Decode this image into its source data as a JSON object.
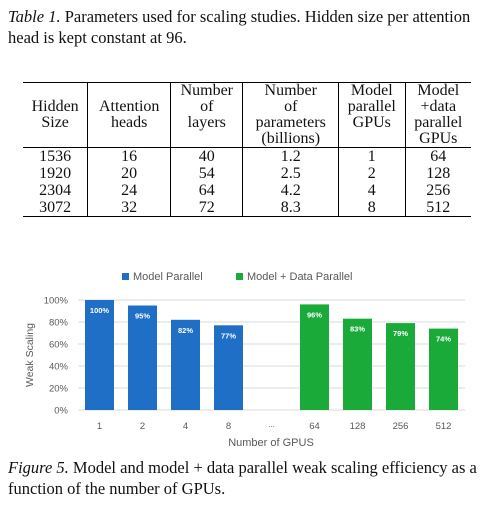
{
  "table_caption": {
    "label": "Table 1.",
    "text": " Parameters used for scaling studies. Hidden size per attention head is kept constant at 96."
  },
  "table": {
    "headers": [
      [
        "",
        "",
        "Number",
        "Number",
        "Model",
        "Model"
      ],
      [
        "Hidden",
        "Attention",
        "of",
        "of",
        "parallel",
        "+data"
      ],
      [
        "Size",
        "heads",
        "layers",
        "parameters",
        "GPUs",
        "parallel"
      ],
      [
        "",
        "",
        "",
        "(billions)",
        "",
        "GPUs"
      ]
    ],
    "rows": [
      [
        "1536",
        "16",
        "40",
        "1.2",
        "1",
        "64"
      ],
      [
        "1920",
        "20",
        "54",
        "2.5",
        "2",
        "128"
      ],
      [
        "2304",
        "24",
        "64",
        "4.2",
        "4",
        "256"
      ],
      [
        "3072",
        "32",
        "72",
        "8.3",
        "8",
        "512"
      ]
    ]
  },
  "chart_data": {
    "type": "bar",
    "xlabel": "Number of GPUS",
    "ylabel": "Weak Scaling",
    "ylim": [
      0,
      100
    ],
    "yticks": [
      "0%",
      "20%",
      "40%",
      "60%",
      "80%",
      "100%"
    ],
    "categories": [
      "1",
      "2",
      "4",
      "8",
      "...",
      "64",
      "128",
      "256",
      "512"
    ],
    "series": [
      {
        "name": "Model Parallel",
        "color": "#1f6fc6",
        "values": [
          100,
          95,
          82,
          77,
          null,
          null,
          null,
          null,
          null
        ],
        "labels": [
          "100%",
          "95%",
          "82%",
          "77%",
          "",
          "",
          "",
          "",
          ""
        ]
      },
      {
        "name": "Model + Data Parallel",
        "color": "#1aaa3a",
        "values": [
          null,
          null,
          null,
          null,
          null,
          96,
          83,
          79,
          74
        ],
        "labels": [
          "",
          "",
          "",
          "",
          "",
          "96%",
          "83%",
          "79%",
          "74%"
        ]
      }
    ],
    "grid": true,
    "legend": "top-center"
  },
  "figure_caption": {
    "label": "Figure 5.",
    "text": " Model and model + data parallel weak scaling efficiency as a function of the number of GPUs."
  }
}
